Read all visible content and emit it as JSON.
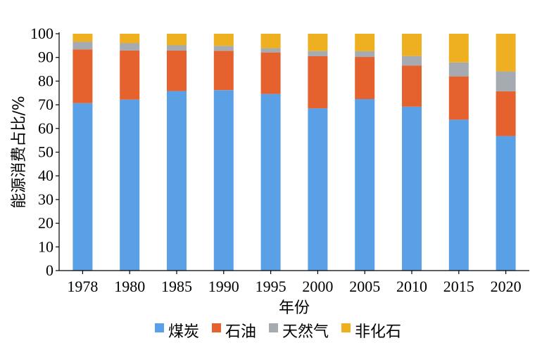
{
  "chart_data": {
    "type": "bar",
    "stacked": true,
    "title": "",
    "xlabel": "年份",
    "ylabel": "能源消费占比/%",
    "ylim": [
      0,
      100
    ],
    "yticks": [
      0,
      10,
      20,
      30,
      40,
      50,
      60,
      70,
      80,
      90,
      100
    ],
    "categories": [
      "1978",
      "1980",
      "1985",
      "1990",
      "1995",
      "2000",
      "2005",
      "2010",
      "2015",
      "2020"
    ],
    "series": [
      {
        "name": "煤炭",
        "color": "#5aa0e6",
        "values": [
          70.7,
          72.2,
          75.8,
          76.2,
          74.6,
          68.5,
          72.4,
          69.2,
          63.7,
          56.8
        ]
      },
      {
        "name": "石油",
        "color": "#e5622f",
        "values": [
          22.7,
          20.7,
          17.1,
          16.6,
          17.5,
          22.0,
          17.8,
          17.4,
          18.3,
          18.9
        ]
      },
      {
        "name": "天然气",
        "color": "#a5abb0",
        "values": [
          3.2,
          3.1,
          2.2,
          2.1,
          1.8,
          2.2,
          2.4,
          4.0,
          5.9,
          8.4
        ]
      },
      {
        "name": "非化石",
        "color": "#eeb020",
        "values": [
          3.4,
          4.0,
          4.9,
          5.1,
          6.1,
          7.3,
          7.4,
          9.4,
          12.1,
          15.9
        ]
      }
    ],
    "legend_position": "bottom",
    "grid": false
  }
}
